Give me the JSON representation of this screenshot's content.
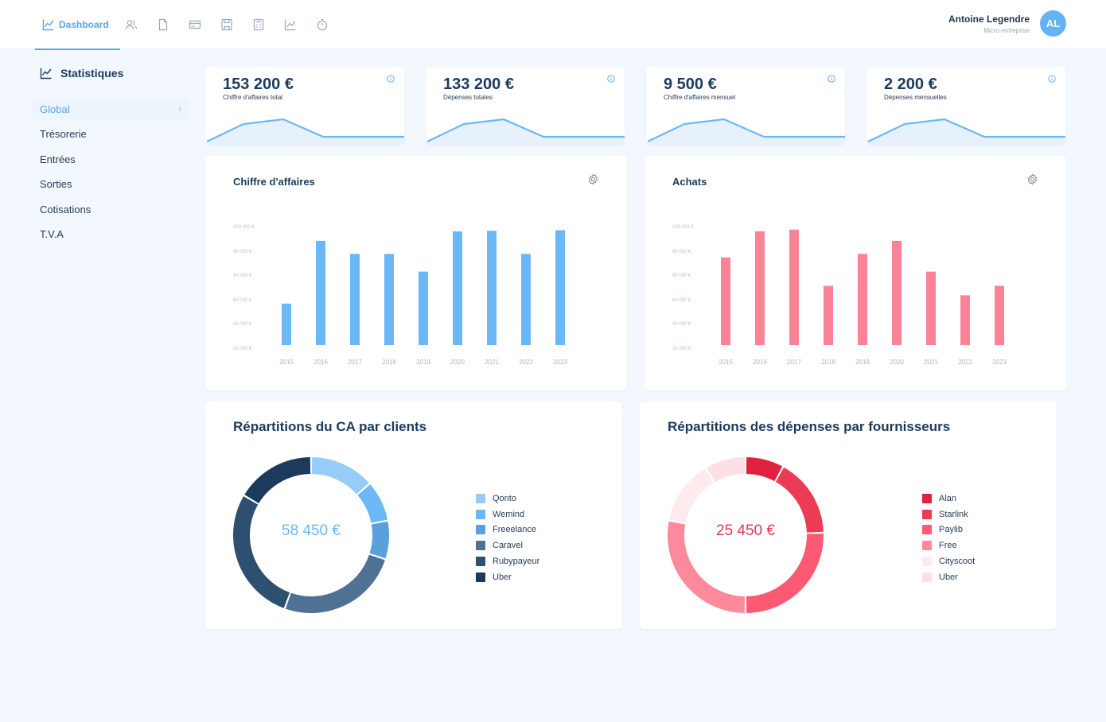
{
  "nav": {
    "dashboard_label": "Dashboard",
    "icons": [
      "users-icon",
      "document-icon",
      "card-icon",
      "save-icon",
      "calculator-icon",
      "chart-icon",
      "timer-icon"
    ]
  },
  "user": {
    "name": "Antoine Legendre",
    "role": "Micro-entreprise",
    "initials": "AL"
  },
  "sidebar": {
    "title": "Statistiques",
    "items": [
      {
        "label": "Global",
        "active": true
      },
      {
        "label": "Trésorerie"
      },
      {
        "label": "Entrées"
      },
      {
        "label": "Sorties"
      },
      {
        "label": "Cotisations"
      },
      {
        "label": "T.V.A"
      }
    ]
  },
  "kpis": [
    {
      "value": "153 200 €",
      "label": "Chiffre d'affaires total"
    },
    {
      "value": "133 200 €",
      "label": "Dépenses totales"
    },
    {
      "value": "9 500 €",
      "label": "Chiffre d'affaires mensuel"
    },
    {
      "value": "2 200 €",
      "label": "Dépenses mensuelles"
    }
  ],
  "colors": {
    "accent": "#5aa6e8",
    "bar_blue": "#6cb8f6",
    "bar_pink": "#fb8297",
    "revenue_center": "#6cb8f6",
    "expense_center": "#e03a53"
  },
  "chart_data": [
    {
      "type": "bar",
      "title": "Chiffre d'affaires",
      "categories": [
        "2015",
        "2016",
        "2017",
        "2018",
        "2019",
        "2020",
        "2021",
        "2022",
        "2023"
      ],
      "values": [
        35000,
        88000,
        77000,
        77000,
        62000,
        96000,
        96500,
        77000,
        97000
      ],
      "ytick_labels": [
        "100 000 €",
        "90 000 €",
        "80 000 €",
        "60 000 €",
        "40 000 €",
        "20 000 €"
      ],
      "color": "#6cb8f6"
    },
    {
      "type": "bar",
      "title": "Achats",
      "categories": [
        "2015",
        "2016",
        "2017",
        "2018",
        "2019",
        "2020",
        "2021",
        "2022",
        "2023"
      ],
      "values": [
        74000,
        96000,
        97500,
        50000,
        77000,
        88000,
        62000,
        42000,
        50000
      ],
      "ytick_labels": [
        "100 000 €",
        "90 000 €",
        "80 000 €",
        "60 000 €",
        "40 000 €",
        "20 000 €"
      ],
      "color": "#fb8297"
    },
    {
      "type": "pie",
      "title": "Répartitions du CA par clients",
      "center_label": "58 450 €",
      "slices": [
        {
          "name": "Qonto",
          "value": 13.5,
          "color": "#98ccf8"
        },
        {
          "name": "Wemind",
          "value": 8.5,
          "color": "#6cb8f6"
        },
        {
          "name": "Freeelance",
          "value": 8,
          "color": "#5aa0da"
        },
        {
          "name": "Caravel",
          "value": 25.5,
          "color": "#4f7193"
        },
        {
          "name": "Rubypayeur",
          "value": 28,
          "color": "#2d5070"
        },
        {
          "name": "Uber",
          "value": 16.5,
          "color": "#1b3a5c"
        }
      ]
    },
    {
      "type": "pie",
      "title": "Répartitions des dépenses par fournisseurs",
      "center_label": "25 450 €",
      "slices": [
        {
          "name": "Alan",
          "value": 8,
          "color": "#e0223f"
        },
        {
          "name": "Starlink",
          "value": 16.5,
          "color": "#ec3b55"
        },
        {
          "name": "Paylib",
          "value": 25.5,
          "color": "#fb5a72"
        },
        {
          "name": "Free",
          "value": 28,
          "color": "#fd8a9c"
        },
        {
          "name": "Cityscoot",
          "value": 13.5,
          "color": "#fdebee"
        },
        {
          "name": "Uber",
          "value": 8.5,
          "color": "#fde0e5"
        }
      ]
    }
  ]
}
